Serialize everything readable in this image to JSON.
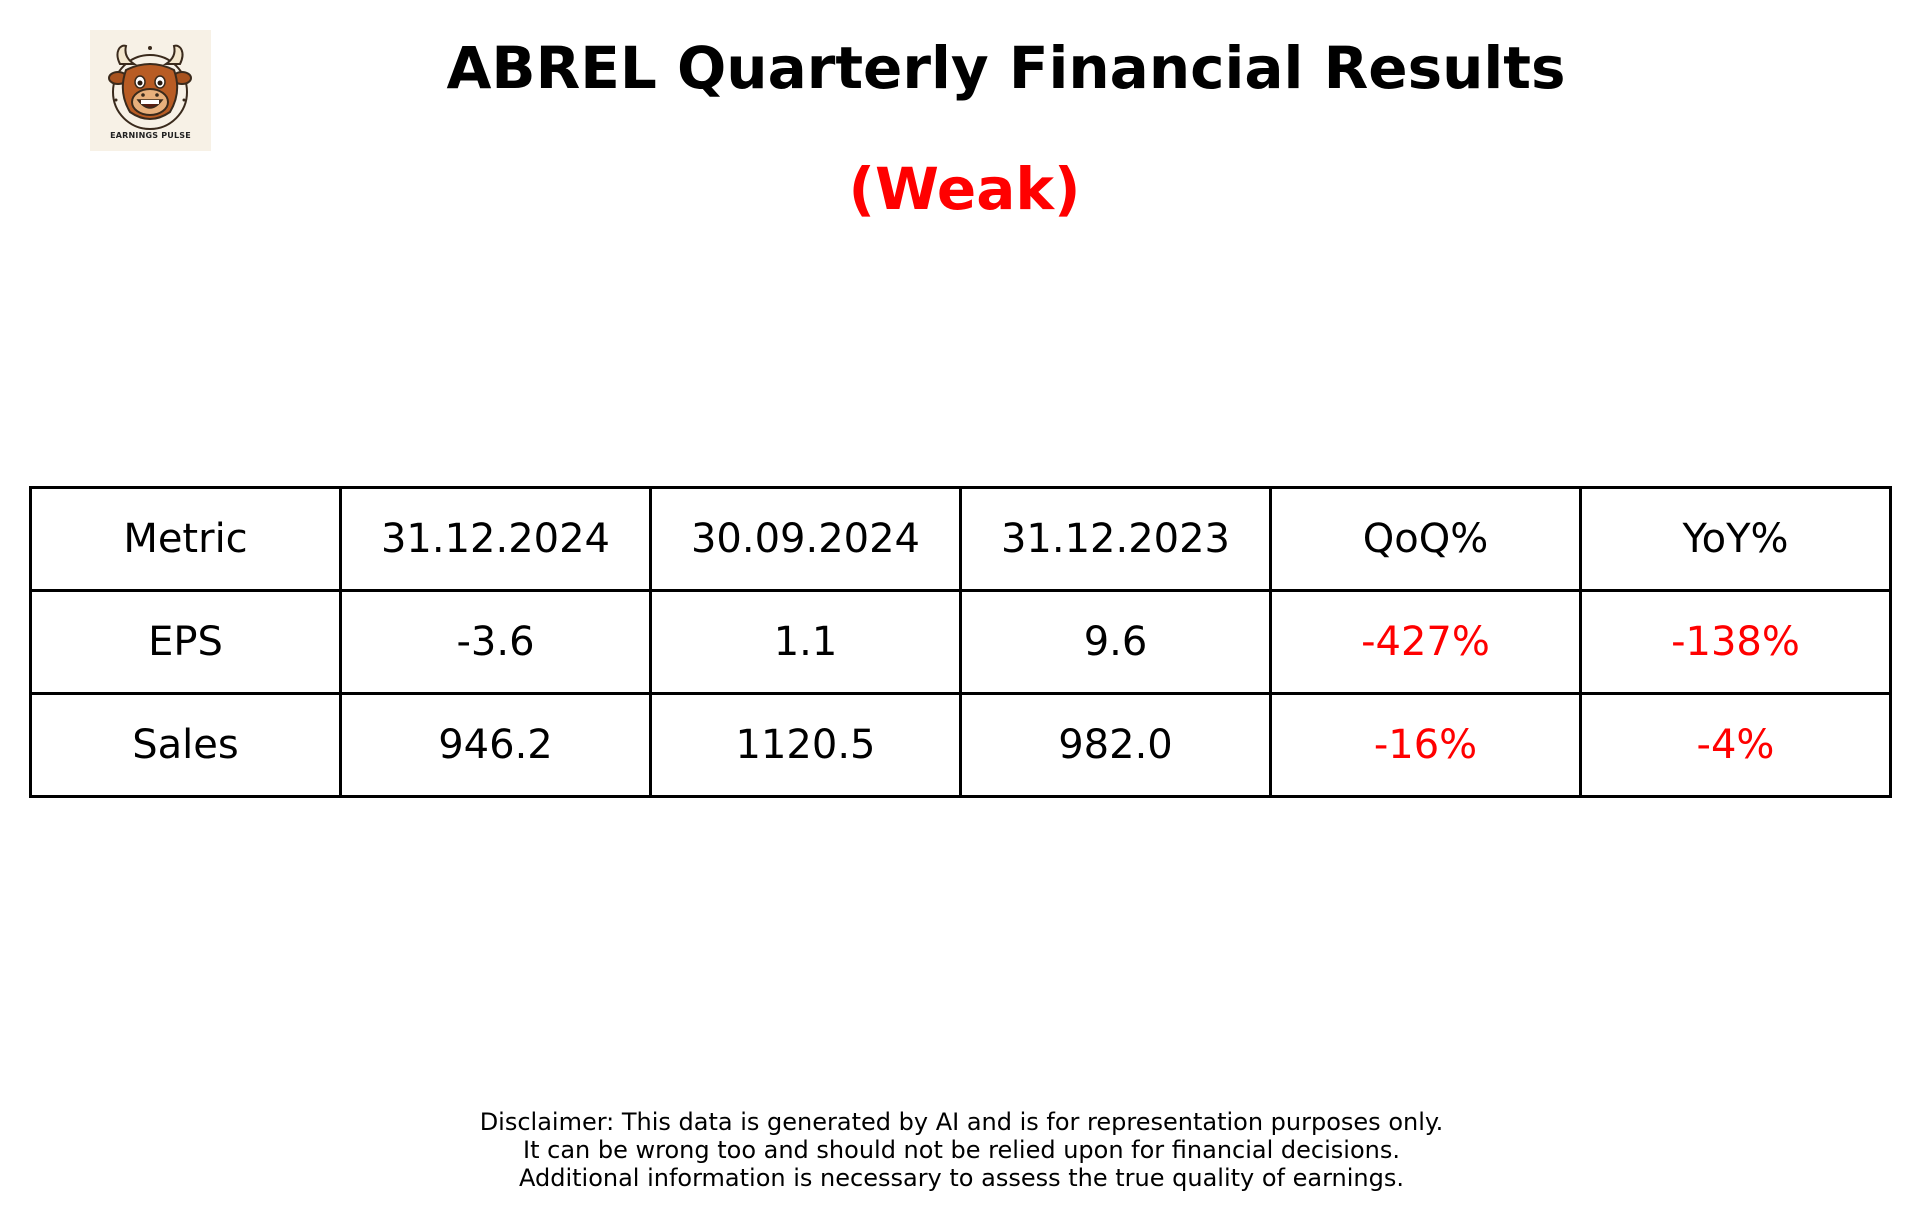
{
  "logo": {
    "text": "EARNINGS PULSE",
    "icon": "bull-mascot-icon"
  },
  "title": "ABREL Quarterly Financial Results",
  "verdict": "(Weak)",
  "colors": {
    "negative": "#ff0000",
    "verdict": "#ff0000",
    "logo_background": "#f7f1e6"
  },
  "table": {
    "headers": [
      "Metric",
      "31.12.2024",
      "30.09.2024",
      "31.12.2023",
      "QoQ%",
      "YoY%"
    ],
    "rows": [
      [
        "EPS",
        "-3.6",
        "1.1",
        "9.6",
        "-427%",
        "-138%"
      ],
      [
        "Sales",
        "946.2",
        "1120.5",
        "982.0",
        "-16%",
        "-4%"
      ]
    ]
  },
  "disclaimer": [
    "Disclaimer: This data is generated by AI and is for representation purposes only.",
    "It can be wrong too and should not be relied upon for financial decisions.",
    "Additional information is necessary to assess the true quality of earnings."
  ]
}
